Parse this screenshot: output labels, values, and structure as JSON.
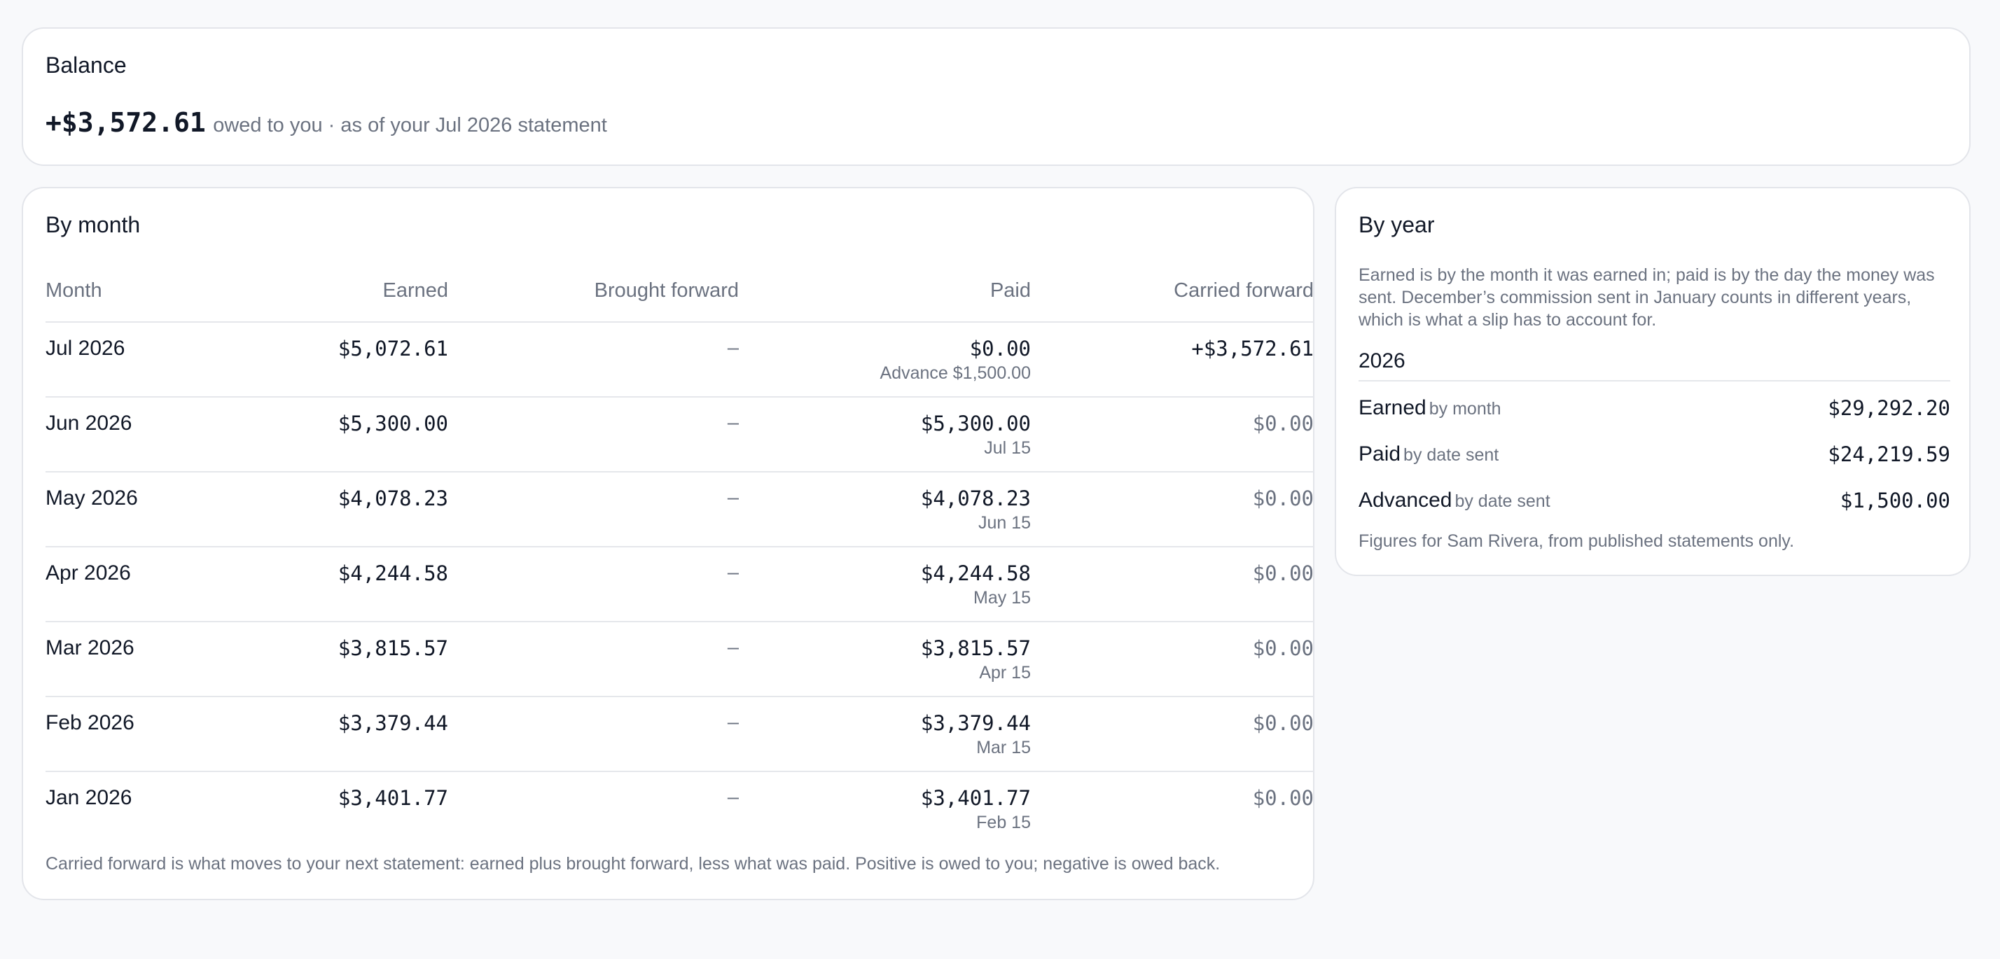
{
  "balance": {
    "title": "Balance",
    "amount": "+$3,572.61",
    "note": "owed to you · as of your Jul 2026 statement"
  },
  "by_month": {
    "title": "By month",
    "columns": {
      "month": "Month",
      "earned": "Earned",
      "brought_forward": "Brought forward",
      "paid": "Paid",
      "carried_forward": "Carried forward"
    },
    "rows": [
      {
        "month": "Jul 2026",
        "earned": "$5,072.61",
        "brought_forward": "–",
        "paid": "$0.00",
        "paid_note": "Advance $1,500.00",
        "carried_forward": "+$3,572.61"
      },
      {
        "month": "Jun 2026",
        "earned": "$5,300.00",
        "brought_forward": "–",
        "paid": "$5,300.00",
        "paid_note": "Jul 15",
        "carried_forward": "$0.00"
      },
      {
        "month": "May 2026",
        "earned": "$4,078.23",
        "brought_forward": "–",
        "paid": "$4,078.23",
        "paid_note": "Jun 15",
        "carried_forward": "$0.00"
      },
      {
        "month": "Apr 2026",
        "earned": "$4,244.58",
        "brought_forward": "–",
        "paid": "$4,244.58",
        "paid_note": "May 15",
        "carried_forward": "$0.00"
      },
      {
        "month": "Mar 2026",
        "earned": "$3,815.57",
        "brought_forward": "–",
        "paid": "$3,815.57",
        "paid_note": "Apr 15",
        "carried_forward": "$0.00"
      },
      {
        "month": "Feb 2026",
        "earned": "$3,379.44",
        "brought_forward": "–",
        "paid": "$3,379.44",
        "paid_note": "Mar 15",
        "carried_forward": "$0.00"
      },
      {
        "month": "Jan 2026",
        "earned": "$3,401.77",
        "brought_forward": "–",
        "paid": "$3,401.77",
        "paid_note": "Feb 15",
        "carried_forward": "$0.00"
      }
    ],
    "footnote": "Carried forward is what moves to your next statement: earned plus brought forward, less what was paid. Positive is owed to you; negative is owed back."
  },
  "by_year": {
    "title": "By year",
    "description": "Earned is by the month it was earned in; paid is by the day the money was sent. December’s commission sent in January counts in different years, which is what a slip has to account for.",
    "year": "2026",
    "rows": [
      {
        "label": "Earned",
        "sub": "by month",
        "value": "$29,292.20"
      },
      {
        "label": "Paid",
        "sub": "by date sent",
        "value": "$24,219.59"
      },
      {
        "label": "Advanced",
        "sub": "by date sent",
        "value": "$1,500.00"
      }
    ],
    "footnote": "Figures for Sam Rivera, from published statements only."
  },
  "colors": {
    "background": "#f8f9fb",
    "card": "#ffffff",
    "border": "#e3e5ea",
    "text": "#111827",
    "muted": "#6b7280"
  }
}
